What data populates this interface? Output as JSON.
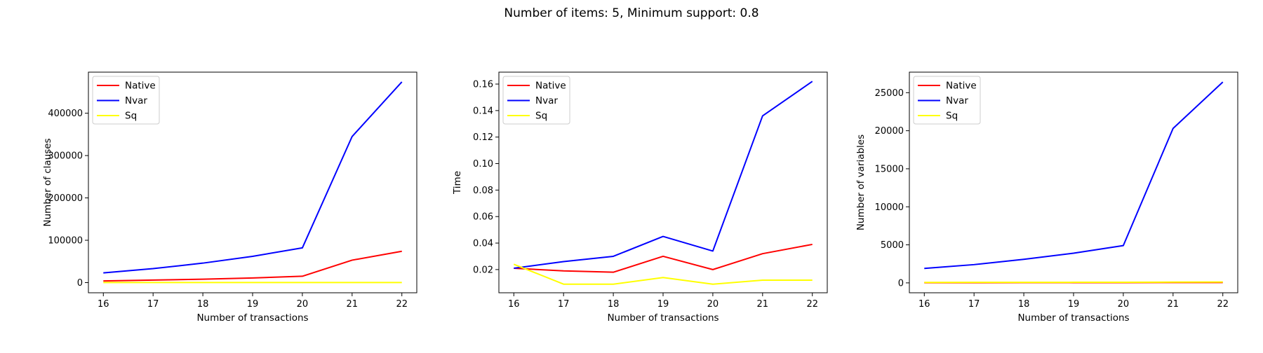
{
  "figure": {
    "suptitle": "Number of items: 5, Minimum support: 0.8"
  },
  "colors": {
    "Native": "#ff0000",
    "Nvar": "#0000ff",
    "Sq": "#ffff00"
  },
  "chart_data": [
    {
      "type": "line",
      "xlabel": "Number of transactions",
      "ylabel": "Number of clauses",
      "x": [
        16,
        17,
        18,
        19,
        20,
        21,
        22
      ],
      "xticks": [
        "16",
        "17",
        "18",
        "19",
        "20",
        "21",
        "22"
      ],
      "yticks": [
        0,
        100000,
        200000,
        300000,
        400000
      ],
      "ytick_labels": [
        "0",
        "100000",
        "200000",
        "300000",
        "400000"
      ],
      "ylim": [
        -24000,
        497000
      ],
      "xlim": [
        15.7,
        22.3
      ],
      "legend": "top-left",
      "series": [
        {
          "name": "Native",
          "values": [
            4000,
            6000,
            8000,
            11000,
            15000,
            53000,
            74000
          ]
        },
        {
          "name": "Nvar",
          "values": [
            23000,
            33000,
            46000,
            62000,
            82000,
            345000,
            474000
          ]
        },
        {
          "name": "Sq",
          "values": [
            100,
            120,
            140,
            160,
            180,
            200,
            230
          ]
        }
      ]
    },
    {
      "type": "line",
      "xlabel": "Number of transactions",
      "ylabel": "Time",
      "x": [
        16,
        17,
        18,
        19,
        20,
        21,
        22
      ],
      "xticks": [
        "16",
        "17",
        "18",
        "19",
        "20",
        "21",
        "22"
      ],
      "yticks": [
        0.02,
        0.04,
        0.06,
        0.08,
        0.1,
        0.12,
        0.14,
        0.16
      ],
      "ytick_labels": [
        "0.02",
        "0.04",
        "0.06",
        "0.08",
        "0.10",
        "0.12",
        "0.14",
        "0.16"
      ],
      "ylim": [
        0.0025,
        0.169
      ],
      "xlim": [
        15.7,
        22.3
      ],
      "legend": "top-left",
      "series": [
        {
          "name": "Native",
          "values": [
            0.021,
            0.019,
            0.018,
            0.03,
            0.02,
            0.032,
            0.039
          ]
        },
        {
          "name": "Nvar",
          "values": [
            0.021,
            0.026,
            0.03,
            0.045,
            0.034,
            0.136,
            0.162
          ]
        },
        {
          "name": "Sq",
          "values": [
            0.024,
            0.009,
            0.009,
            0.014,
            0.009,
            0.012,
            0.012
          ]
        }
      ]
    },
    {
      "type": "line",
      "xlabel": "Number of transactions",
      "ylabel": "Number of variables",
      "x": [
        16,
        17,
        18,
        19,
        20,
        21,
        22
      ],
      "xticks": [
        "16",
        "17",
        "18",
        "19",
        "20",
        "21",
        "22"
      ],
      "yticks": [
        0,
        5000,
        10000,
        15000,
        20000,
        25000
      ],
      "ytick_labels": [
        "0",
        "5000",
        "10000",
        "15000",
        "20000",
        "25000"
      ],
      "ylim": [
        -1300,
        27700
      ],
      "xlim": [
        15.7,
        22.3
      ],
      "legend": "top-left",
      "series": [
        {
          "name": "Native",
          "values": [
            20,
            25,
            30,
            35,
            40,
            45,
            50
          ]
        },
        {
          "name": "Nvar",
          "values": [
            1900,
            2400,
            3100,
            3900,
            4900,
            20300,
            26400
          ]
        },
        {
          "name": "Sq",
          "values": [
            60,
            65,
            70,
            75,
            80,
            100,
            120
          ]
        }
      ]
    }
  ]
}
